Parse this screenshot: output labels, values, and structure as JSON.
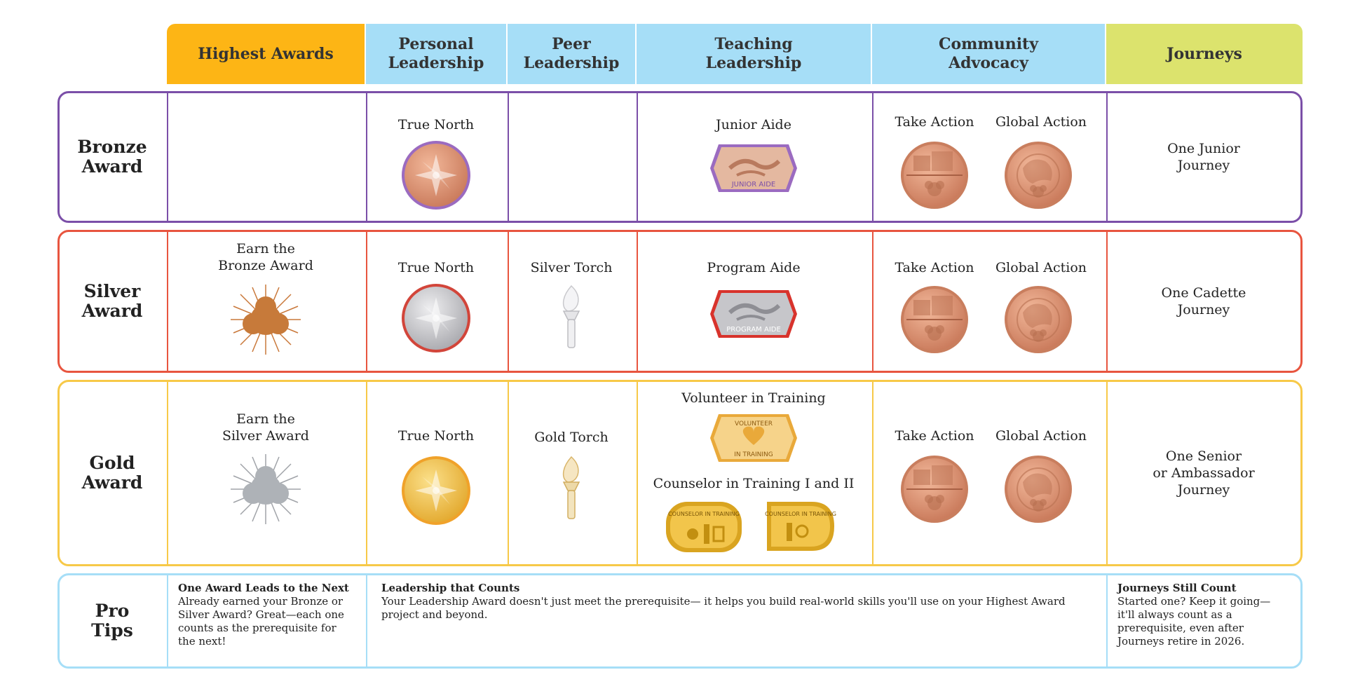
{
  "header": {
    "highest_awards": "Highest Awards",
    "personal_leadership": "Personal\nLeadership",
    "peer_leadership": "Peer\nLeadership",
    "teaching_leadership": "Teaching\nLeadership",
    "community_advocacy": "Community\nAdvocacy",
    "journeys": "Journeys"
  },
  "rows": {
    "bronze": {
      "label": "Bronze\nAward",
      "personal": "True North",
      "teaching": "Junior Aide",
      "take_action": "Take Action",
      "global_action": "Global Action",
      "journey": "One Junior\nJourney",
      "aide_badge_text": "JUNIOR AIDE"
    },
    "silver": {
      "label": "Silver\nAward",
      "highest": "Earn the\nBronze Award",
      "personal": "True North",
      "peer": "Silver Torch",
      "teaching": "Program Aide",
      "take_action": "Take Action",
      "global_action": "Global Action",
      "journey": "One Cadette\nJourney",
      "aide_badge_text": "PROGRAM AIDE"
    },
    "gold": {
      "label": "Gold\nAward",
      "highest": "Earn the\nSilver Award",
      "personal": "True North",
      "peer": "Gold Torch",
      "teaching_1": "Volunteer in Training",
      "teaching_2": "Counselor in Training I and II",
      "take_action": "Take Action",
      "global_action": "Global Action",
      "journey": "One Senior\nor Ambassador\nJourney",
      "vit_badge_top": "VOLUNTEER",
      "vit_badge_bottom": "IN TRAINING",
      "cit_badge_1": "COUNSELOR IN TRAINING",
      "cit_badge_2": "COUNSELOR IN TRAINING"
    }
  },
  "pro_tips": {
    "label": "Pro\nTips",
    "tip1_title": "One Award Leads to the Next",
    "tip1_body": "Already earned your Bronze or Silver Award? Great—each one counts as the prerequisite for the next!",
    "tip2_title": "Leadership that Counts",
    "tip2_body": "Your Leadership Award doesn't just meet the prerequisite— it helps you build real-world skills you'll use on your Highest Award project and beyond.",
    "tip3_title": "Journeys Still Count",
    "tip3_body": "Started one? Keep it going—it'll always count as a prerequisite, even after Journeys retire in 2026."
  },
  "colors": {
    "highest_awards_header": "#FDB515",
    "leadership_header": "#A6DEF7",
    "journeys_header": "#DCE36D",
    "bronze_border": "#7B4FA8",
    "silver_border": "#E8553F",
    "gold_border": "#F7C948",
    "tips_border": "#A6DEF7",
    "bronze_medal": "#D98E6C",
    "silver_medal": "#C9C9CC",
    "gold_medal": "#F2C54B"
  }
}
